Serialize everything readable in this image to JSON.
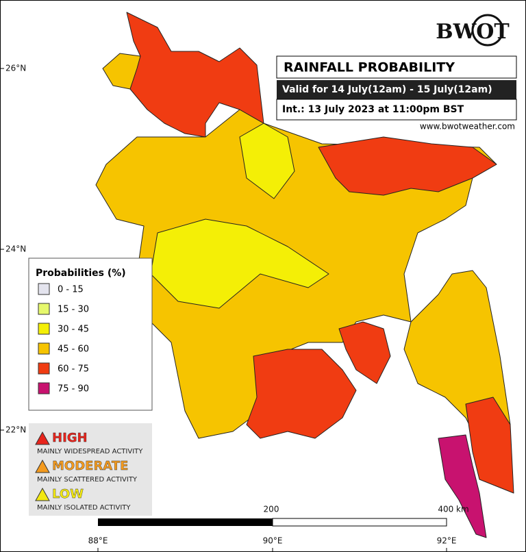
{
  "header": {
    "logo": "BWOT",
    "title": "RAINFALL PROBABILITY",
    "valid": "Valid for 14 July(12am) - 15 July(12am)",
    "issued": "Int.: 13 July 2023 at 11:00pm BST",
    "website": "www.bwotweather.com"
  },
  "latitude_labels": [
    "26°N",
    "24°N",
    "22°N"
  ],
  "longitude_labels": [
    "88°E",
    "90°E",
    "92°E"
  ],
  "scale_labels": [
    "200",
    "400 km"
  ],
  "legend": {
    "title": "Probabilities (%)",
    "items": [
      {
        "label": "0 - 15",
        "color": "#e4e4ee"
      },
      {
        "label": "15 - 30",
        "color": "#e6f86c"
      },
      {
        "label": "30 - 45",
        "color": "#f4ef06"
      },
      {
        "label": "45 - 60",
        "color": "#f6c400"
      },
      {
        "label": "60 - 75",
        "color": "#f03c12"
      },
      {
        "label": "75 - 90",
        "color": "#c8126f"
      }
    ]
  },
  "risk_levels": [
    {
      "level": "HIGH",
      "description": "MAINLY WIDESPREAD ACTIVITY",
      "color": "#e8241c"
    },
    {
      "level": "MODERATE",
      "description": "MAINLY SCATTERED ACTIVITY",
      "color": "#f39a1e"
    },
    {
      "level": "LOW",
      "description": "MAINLY ISOLATED ACTIVITY",
      "color": "#f2e810"
    }
  ]
}
